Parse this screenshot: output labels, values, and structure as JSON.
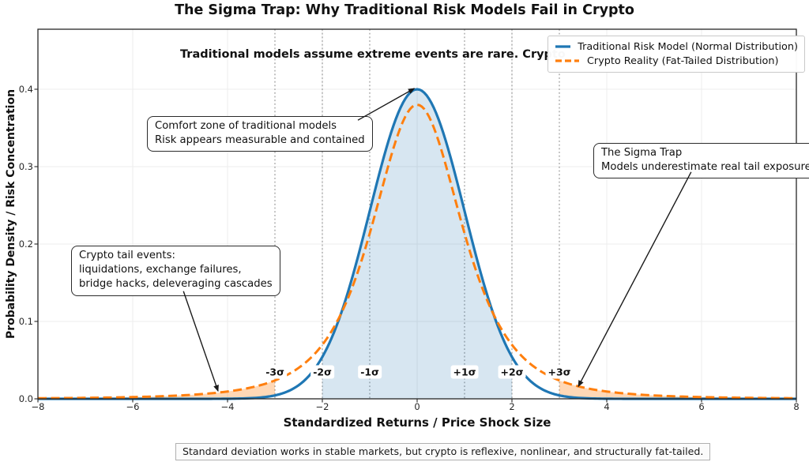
{
  "colors": {
    "blue": "#1f77b4",
    "orange": "#ff7f0e",
    "fill_blue": "rgba(31,119,180,0.18)",
    "fill_orange": "rgba(255,127,14,0.30)",
    "grid": "#ececec",
    "sigma_line": "#8c8c8c",
    "spine": "#262626",
    "arrow": "#1a1a1a"
  },
  "chart_data": {
    "type": "line",
    "title": "The Sigma Trap: Why Traditional Risk Models Fail in Crypto",
    "subtitle": "Traditional models assume extreme events are rare. Crypto",
    "xlabel": "Standardized Returns / Price Shock Size",
    "ylabel": "Probability Density / Risk Concentration",
    "xlim": [
      -8,
      8
    ],
    "ylim": [
      0,
      0.4776
    ],
    "grid": true,
    "legend_position": "upper right",
    "x_ticks": [
      -8,
      -6,
      -4,
      -2,
      0,
      2,
      4,
      6,
      8
    ],
    "x_tick_labels": [
      "−8",
      "−6",
      "−4",
      "−2",
      "0",
      "2",
      "4",
      "6",
      "8"
    ],
    "y_ticks": [
      0.0,
      0.1,
      0.2,
      0.3,
      0.4
    ],
    "y_tick_labels": [
      "0.0",
      "0.1",
      "0.2",
      "0.3",
      "0.4"
    ],
    "series": [
      {
        "name": "Traditional Risk Model (Normal Distribution)",
        "color": "#1f77b4",
        "style": "solid",
        "model": "normal",
        "peak": 0.4,
        "sigma": 1
      },
      {
        "name": "Crypto Reality (Fat-Tailed Distribution)",
        "color": "#ff7f0e",
        "style": "dashed",
        "model": "student_t",
        "peak": 0.38,
        "nu": 3
      }
    ],
    "reference_points": {
      "x": [
        -8,
        -7,
        -6,
        -5,
        -4,
        -3,
        -2,
        -1,
        0,
        1,
        2,
        3,
        4,
        5,
        6,
        7,
        8
      ],
      "normal": [
        0,
        0,
        0,
        0,
        0.0001,
        0.0044,
        0.054,
        0.243,
        0.4,
        0.243,
        0.054,
        0.0044,
        0.0001,
        0,
        0,
        0,
        0
      ],
      "crypto": [
        0.0008,
        0.0013,
        0.0023,
        0.0044,
        0.0095,
        0.0238,
        0.0698,
        0.2138,
        0.38,
        0.2138,
        0.0698,
        0.0238,
        0.0095,
        0.0044,
        0.0023,
        0.0013,
        0.0008
      ]
    },
    "fills": [
      {
        "kind": "under",
        "series": 0,
        "from": -2,
        "to": 2,
        "color": "rgba(31,119,180,0.18)"
      },
      {
        "kind": "between",
        "top": 1,
        "bottom": 0,
        "from": -8,
        "to": -3,
        "color": "rgba(255,127,14,0.30)"
      },
      {
        "kind": "between",
        "top": 1,
        "bottom": 0,
        "from": 3,
        "to": 8,
        "color": "rgba(255,127,14,0.30)"
      }
    ],
    "sigma_lines": [
      -3,
      -2,
      -1,
      1,
      2,
      3
    ],
    "sigma_labels": [
      {
        "x": -3,
        "label": "-3σ"
      },
      {
        "x": -2,
        "label": "-2σ"
      },
      {
        "x": -1,
        "label": "-1σ"
      },
      {
        "x": 1,
        "label": "+1σ"
      },
      {
        "x": 2,
        "label": "+2σ"
      },
      {
        "x": 3,
        "label": "+3σ"
      }
    ]
  },
  "annotations": [
    {
      "id": "comfort-zone",
      "lines": [
        "Comfort zone of traditional models",
        "Risk appears measurable and contained"
      ],
      "arrow": {
        "from_x": -1.25,
        "from_y": 0.36,
        "to_x": -0.06,
        "to_y": 0.401
      }
    },
    {
      "id": "sigma-trap",
      "lines": [
        "The Sigma Trap",
        "Models underestimate real tail exposure"
      ],
      "arrow": {
        "from_x": 5.78,
        "from_y": 0.293,
        "to_x": 3.4,
        "to_y": 0.016
      }
    },
    {
      "id": "crypto-tail-events",
      "lines": [
        "Crypto tail events:",
        "liquidations, exchange failures,",
        "bridge hacks, deleveraging cascades"
      ],
      "arrow": {
        "from_x": -4.93,
        "from_y": 0.139,
        "to_x": -4.2,
        "to_y": 0.01
      }
    }
  ],
  "footer": {
    "caption": "Standard deviation works in stable markets, but crypto is reflexive, nonlinear, and structurally fat-tailed."
  }
}
